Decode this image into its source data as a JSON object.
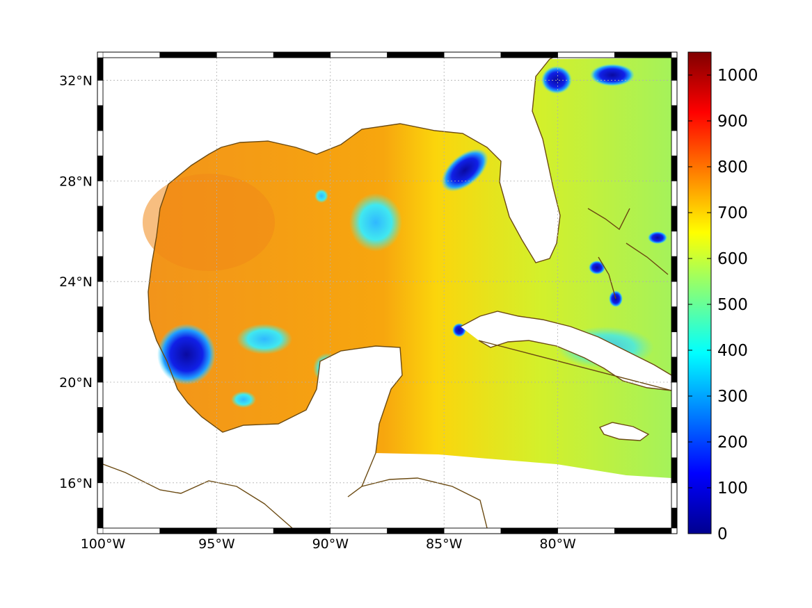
{
  "map": {
    "lon_range": [
      -100,
      -75
    ],
    "lat_range": [
      14.2,
      32.9
    ],
    "lon_ticks": [
      {
        "value": -100,
        "label": "100°W"
      },
      {
        "value": -95,
        "label": "95°W"
      },
      {
        "value": -90,
        "label": "90°W"
      },
      {
        "value": -85,
        "label": "85°W"
      },
      {
        "value": -80,
        "label": "80°W"
      }
    ],
    "lat_ticks": [
      {
        "value": 16,
        "label": "16°N"
      },
      {
        "value": 20,
        "label": "20°N"
      },
      {
        "value": 24,
        "label": "24°N"
      },
      {
        "value": 28,
        "label": "28°N"
      },
      {
        "value": 32,
        "label": "32°N"
      }
    ],
    "grid": "dotted",
    "frame": "black-white checkered border",
    "coastline_color": "#6b4a12",
    "land_color": "#ffffff",
    "field_regions": [
      {
        "name": "western-gulf",
        "value": 780
      },
      {
        "name": "central-gulf",
        "value": 730
      },
      {
        "name": "eastern-gulf",
        "value": 650
      },
      {
        "name": "caribbean-west",
        "value": 620
      },
      {
        "name": "atlantic-east",
        "value": 560
      }
    ],
    "low_anomalies": [
      {
        "lon": -96.6,
        "lat": 21.4,
        "value": 30
      },
      {
        "lon": -84.1,
        "lat": 28.5,
        "value": 60
      },
      {
        "lon": -79.2,
        "lat": 31.9,
        "value": 80
      },
      {
        "lon": -77.5,
        "lat": 31.5,
        "value": 120
      },
      {
        "lon": -78.0,
        "lat": 24.8,
        "value": 100
      },
      {
        "lon": -77.3,
        "lat": 24.0,
        "value": 150
      },
      {
        "lon": -75.8,
        "lat": 25.8,
        "value": 250
      },
      {
        "lon": -88.8,
        "lat": 26.4,
        "value": 400
      },
      {
        "lon": -93.5,
        "lat": 21.8,
        "value": 400
      },
      {
        "lon": -84.4,
        "lat": 22.4,
        "value": 200
      }
    ]
  },
  "colorbar": {
    "min": 0,
    "max": 1050,
    "colormap": "jet",
    "ticks": [
      {
        "value": 0,
        "label": "0"
      },
      {
        "value": 100,
        "label": "100"
      },
      {
        "value": 200,
        "label": "200"
      },
      {
        "value": 300,
        "label": "300"
      },
      {
        "value": 400,
        "label": "400"
      },
      {
        "value": 500,
        "label": "500"
      },
      {
        "value": 600,
        "label": "600"
      },
      {
        "value": 700,
        "label": "700"
      },
      {
        "value": 800,
        "label": "800"
      },
      {
        "value": 900,
        "label": "900"
      },
      {
        "value": 1000,
        "label": "1000"
      }
    ]
  }
}
